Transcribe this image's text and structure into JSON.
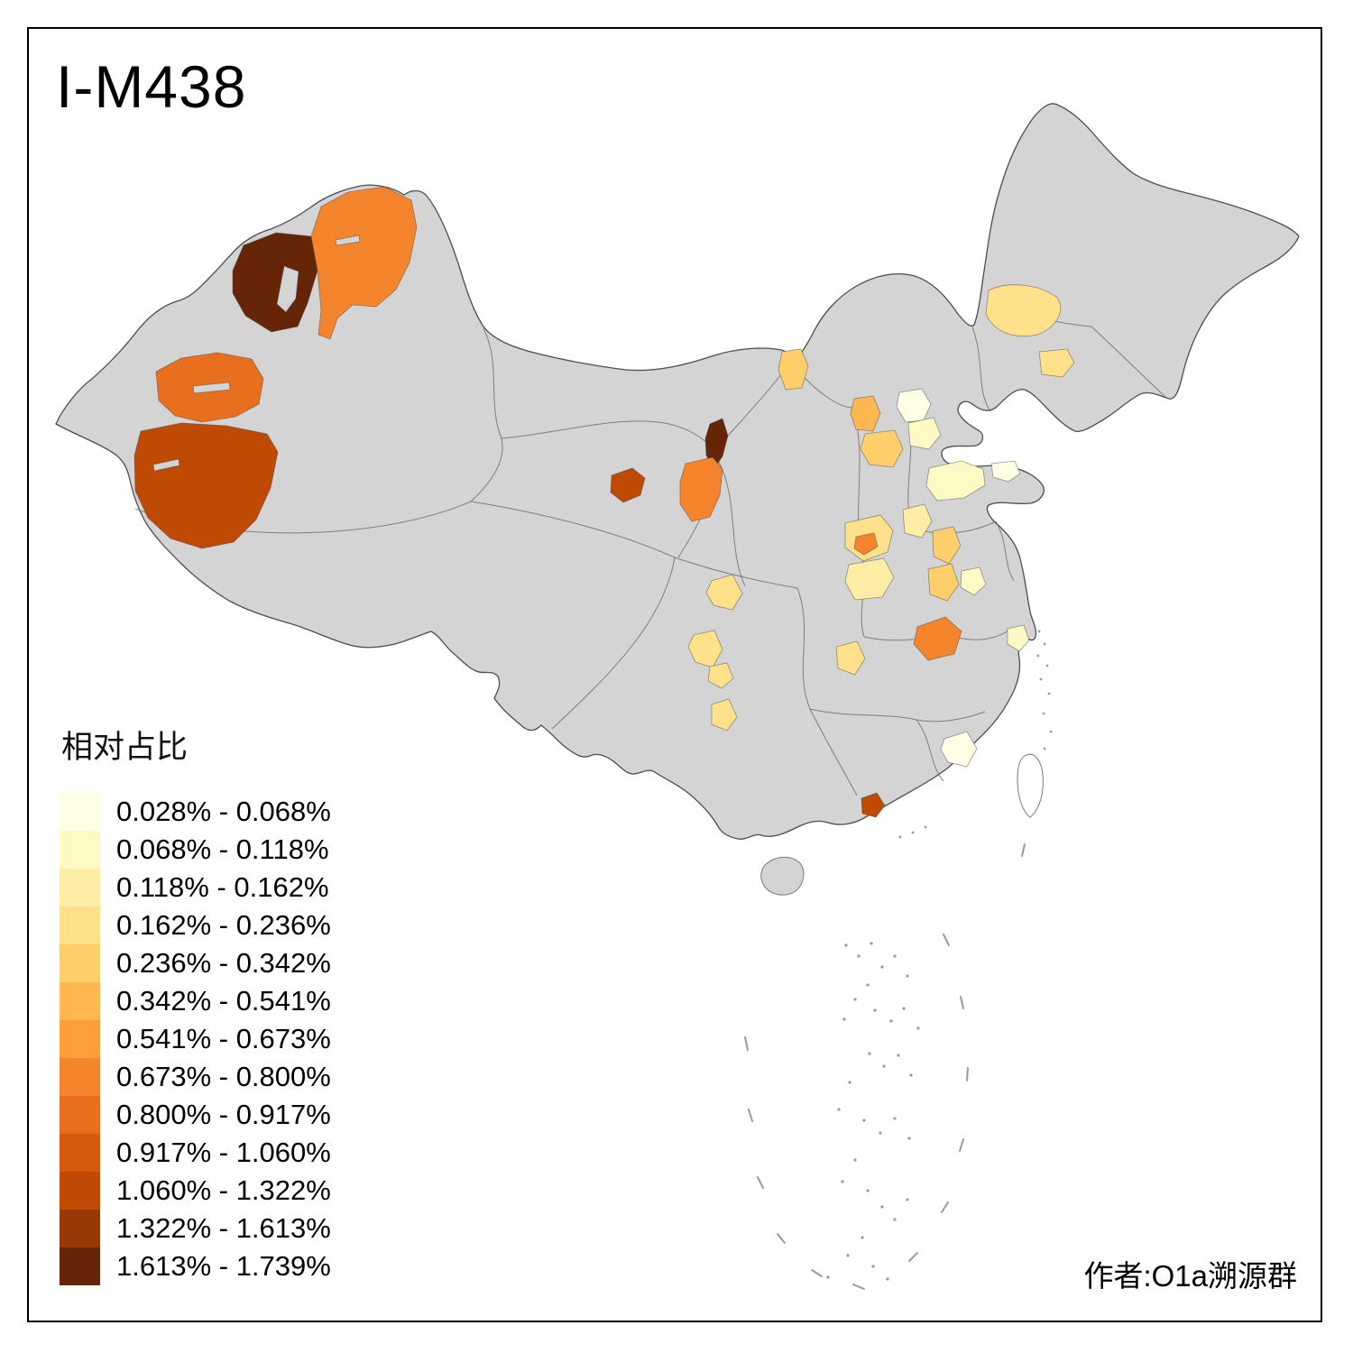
{
  "title": "I-M438",
  "credit": "作者:O1a溯源群",
  "legend": {
    "title": "相对占比",
    "classes": [
      {
        "label": "0.028% - 0.068%",
        "color": "#FFFFE5"
      },
      {
        "label": "0.068% - 0.118%",
        "color": "#FFF9C6"
      },
      {
        "label": "0.118% - 0.162%",
        "color": "#FEEDA4"
      },
      {
        "label": "0.162% - 0.236%",
        "color": "#FEE18A"
      },
      {
        "label": "0.236% - 0.342%",
        "color": "#FECF6B"
      },
      {
        "label": "0.342% - 0.541%",
        "color": "#FEB751"
      },
      {
        "label": "0.541% - 0.673%",
        "color": "#FD9D3C"
      },
      {
        "label": "0.673% - 0.800%",
        "color": "#F5852D"
      },
      {
        "label": "0.800% - 0.917%",
        "color": "#E86F1E"
      },
      {
        "label": "0.917% - 1.060%",
        "color": "#D55A0B"
      },
      {
        "label": "1.060% - 1.322%",
        "color": "#BF4A04"
      },
      {
        "label": "1.322% - 1.613%",
        "color": "#983804"
      },
      {
        "label": "1.613% - 1.739%",
        "color": "#662506"
      }
    ]
  },
  "map": {
    "base_fill": "#D4D4D4",
    "outline_color": "#4D4D4D",
    "inner_border_color": "#6E6E6E",
    "background": "#FFFFFF",
    "regions": {
      "r01": 13,
      "r02": 8,
      "r03": 9,
      "r04": 11,
      "r05": 13,
      "r06": 8,
      "r07": 11,
      "r08": 4,
      "r09": 4,
      "r10": 5,
      "r11": 6,
      "r12a": 1,
      "r12b": 2,
      "r13": 5,
      "r14": 2,
      "r14b": 1,
      "r15": 4,
      "r16": 8,
      "r17": 3,
      "r18": 5,
      "r19": 3,
      "r20": 5,
      "r21": 2,
      "r22": 8,
      "r23": 4,
      "r24": 4,
      "r25": 4,
      "r26": 4,
      "r27": 4,
      "r28": 2,
      "r29": 1,
      "r30": 11
    }
  }
}
